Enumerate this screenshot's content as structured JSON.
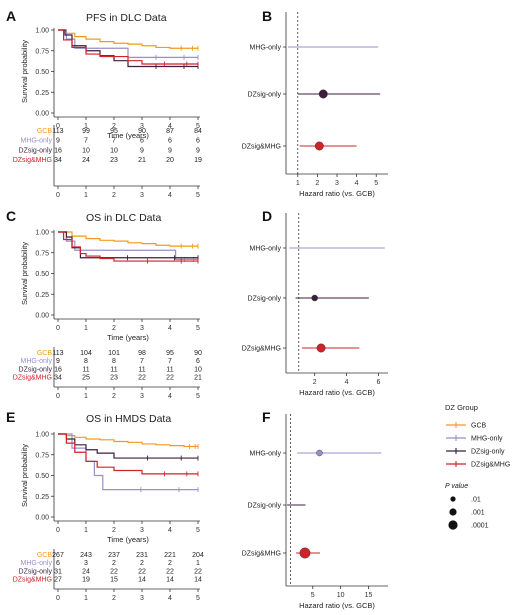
{
  "colors": {
    "GCB": "#F29A1F",
    "MHG-only": "#9A8FC9",
    "DZsig-only": "#3B1F3D",
    "DZsig&MHG": "#D02229"
  },
  "legend": {
    "title": "DZ Group",
    "groups": [
      "GCB",
      "MHG-only",
      "DZsig-only",
      "DZsig&MHG"
    ],
    "pvalue_title": "P value",
    "pvalue_labels": [
      ".01",
      ".001",
      ".0001"
    ]
  },
  "chart_data": [
    {
      "id": "A",
      "type": "line",
      "title": "PFS in DLC Data",
      "xlabel": "Time (years)",
      "ylabel": "Survival probability",
      "xlim": [
        0,
        5
      ],
      "ylim": [
        0,
        1
      ],
      "xticks": [
        0,
        1,
        2,
        3,
        4,
        5
      ],
      "yticks": [
        "0.00",
        "0.25",
        "0.50",
        "0.75",
        "1.00"
      ],
      "series": [
        {
          "name": "GCB",
          "steps": [
            [
              0,
              1
            ],
            [
              0.3,
              0.96
            ],
            [
              0.6,
              0.92
            ],
            [
              1,
              0.89
            ],
            [
              1.5,
              0.86
            ],
            [
              2,
              0.84
            ],
            [
              2.5,
              0.83
            ],
            [
              3,
              0.81
            ],
            [
              3.5,
              0.79
            ],
            [
              4,
              0.78
            ],
            [
              5,
              0.78
            ]
          ]
        },
        {
          "name": "MHG-only",
          "steps": [
            [
              0,
              1
            ],
            [
              0.3,
              0.89
            ],
            [
              0.6,
              0.78
            ],
            [
              2.5,
              0.67
            ],
            [
              5,
              0.67
            ]
          ]
        },
        {
          "name": "DZsig-only",
          "steps": [
            [
              0,
              1
            ],
            [
              0.25,
              0.94
            ],
            [
              0.5,
              0.81
            ],
            [
              1,
              0.75
            ],
            [
              1.5,
              0.69
            ],
            [
              2,
              0.63
            ],
            [
              2.5,
              0.56
            ],
            [
              5,
              0.56
            ]
          ]
        },
        {
          "name": "DZsig&MHG",
          "steps": [
            [
              0,
              1
            ],
            [
              0.2,
              0.88
            ],
            [
              0.5,
              0.79
            ],
            [
              1,
              0.71
            ],
            [
              1.5,
              0.68
            ],
            [
              2.5,
              0.63
            ],
            [
              3,
              0.59
            ],
            [
              5,
              0.59
            ]
          ]
        }
      ],
      "risk_table": {
        "times": [
          "0",
          "1",
          "2",
          "3",
          "4",
          "5"
        ],
        "rows": [
          {
            "name": "GCB",
            "values": [
              "113",
              "99",
              "95",
              "90",
              "87",
              "84"
            ]
          },
          {
            "name": "MHG-only",
            "values": [
              "9",
              "7",
              "7",
              "6",
              "6",
              "6"
            ]
          },
          {
            "name": "DZsig-only",
            "values": [
              "16",
              "10",
              "10",
              "9",
              "9",
              "9"
            ]
          },
          {
            "name": "DZsig&MHG",
            "values": [
              "34",
              "24",
              "23",
              "21",
              "20",
              "19"
            ]
          }
        ]
      }
    },
    {
      "id": "B",
      "type": "scatter",
      "xlabel": "Hazard ratio (vs. GCB)",
      "xlim": [
        0.4,
        5.6
      ],
      "xticks": [
        1,
        2,
        3,
        4,
        5
      ],
      "refline": 1,
      "rows": [
        {
          "name": "MHG-only",
          "hr": null,
          "lo": 0.5,
          "hi": 5.1
        },
        {
          "name": "DZsig-only",
          "hr": 2.3,
          "lo": 1.0,
          "hi": 5.2,
          "p": "0.001"
        },
        {
          "name": "DZsig&MHG",
          "hr": 2.1,
          "lo": 1.1,
          "hi": 4.0,
          "p": "0.001"
        }
      ]
    },
    {
      "id": "C",
      "type": "line",
      "title": "OS in DLC Data",
      "xlabel": "Time (years)",
      "ylabel": "Survival probability",
      "xlim": [
        0,
        5
      ],
      "ylim": [
        0,
        1
      ],
      "xticks": [
        0,
        1,
        2,
        3,
        4,
        5
      ],
      "yticks": [
        "0.00",
        "0.25",
        "0.50",
        "0.75",
        "1.00"
      ],
      "series": [
        {
          "name": "GCB",
          "steps": [
            [
              0,
              1
            ],
            [
              0.5,
              0.95
            ],
            [
              1,
              0.92
            ],
            [
              1.5,
              0.9
            ],
            [
              2,
              0.89
            ],
            [
              2.5,
              0.87
            ],
            [
              3,
              0.86
            ],
            [
              3.5,
              0.84
            ],
            [
              4,
              0.83
            ],
            [
              5,
              0.83
            ]
          ]
        },
        {
          "name": "MHG-only",
          "steps": [
            [
              0,
              1
            ],
            [
              0.3,
              0.89
            ],
            [
              0.6,
              0.78
            ],
            [
              4.2,
              0.67
            ],
            [
              5,
              0.67
            ]
          ]
        },
        {
          "name": "DZsig-only",
          "steps": [
            [
              0,
              1
            ],
            [
              0.3,
              0.94
            ],
            [
              0.5,
              0.81
            ],
            [
              0.8,
              0.69
            ],
            [
              5,
              0.69
            ]
          ]
        },
        {
          "name": "DZsig&MHG",
          "steps": [
            [
              0,
              1
            ],
            [
              0.2,
              0.91
            ],
            [
              0.5,
              0.82
            ],
            [
              0.8,
              0.74
            ],
            [
              1,
              0.71
            ],
            [
              1.5,
              0.68
            ],
            [
              2,
              0.65
            ],
            [
              5,
              0.65
            ]
          ]
        }
      ],
      "risk_table": {
        "times": [
          "0",
          "1",
          "2",
          "3",
          "4",
          "5"
        ],
        "rows": [
          {
            "name": "GCB",
            "values": [
              "113",
              "104",
              "101",
              "98",
              "95",
              "90"
            ]
          },
          {
            "name": "MHG-only",
            "values": [
              "9",
              "8",
              "8",
              "7",
              "7",
              "6"
            ]
          },
          {
            "name": "DZsig-only",
            "values": [
              "16",
              "11",
              "11",
              "11",
              "11",
              "10"
            ]
          },
          {
            "name": "DZsig&MHG",
            "values": [
              "34",
              "25",
              "23",
              "22",
              "22",
              "21"
            ]
          }
        ]
      }
    },
    {
      "id": "D",
      "type": "scatter",
      "xlabel": "Hazard ratio (vs. GCB)",
      "xlim": [
        0.2,
        6.6
      ],
      "xticks": [
        2,
        4,
        6
      ],
      "refline": 1,
      "rows": [
        {
          "name": "MHG-only",
          "hr": null,
          "lo": 0.4,
          "hi": 6.4
        },
        {
          "name": "DZsig-only",
          "hr": 2.0,
          "lo": 0.8,
          "hi": 5.4,
          "p": "0.01"
        },
        {
          "name": "DZsig&MHG",
          "hr": 2.4,
          "lo": 1.2,
          "hi": 4.8,
          "p": "0.001"
        }
      ]
    },
    {
      "id": "E",
      "type": "line",
      "title": "OS in HMDS Data",
      "xlabel": "Time (years)",
      "ylabel": "Survival probability",
      "xlim": [
        0,
        5
      ],
      "ylim": [
        0,
        1
      ],
      "xticks": [
        0,
        1,
        2,
        3,
        4,
        5
      ],
      "yticks": [
        "0.00",
        "0.25",
        "0.50",
        "0.75",
        "1.00"
      ],
      "series": [
        {
          "name": "GCB",
          "steps": [
            [
              0,
              1
            ],
            [
              0.3,
              0.98
            ],
            [
              0.6,
              0.96
            ],
            [
              1,
              0.94
            ],
            [
              1.5,
              0.93
            ],
            [
              2,
              0.91
            ],
            [
              2.5,
              0.9
            ],
            [
              3,
              0.88
            ],
            [
              3.5,
              0.87
            ],
            [
              4,
              0.86
            ],
            [
              4.5,
              0.85
            ],
            [
              5,
              0.85
            ]
          ]
        },
        {
          "name": "MHG-only",
          "steps": [
            [
              0,
              1
            ],
            [
              0.5,
              0.83
            ],
            [
              1,
              0.67
            ],
            [
              1.3,
              0.5
            ],
            [
              1.6,
              0.33
            ],
            [
              5,
              0.33
            ]
          ]
        },
        {
          "name": "DZsig-only",
          "steps": [
            [
              0,
              1
            ],
            [
              0.3,
              0.94
            ],
            [
              0.6,
              0.87
            ],
            [
              1,
              0.81
            ],
            [
              1.4,
              0.77
            ],
            [
              2,
              0.71
            ],
            [
              5,
              0.71
            ]
          ]
        },
        {
          "name": "DZsig&MHG",
          "steps": [
            [
              0,
              1
            ],
            [
              0.3,
              0.89
            ],
            [
              0.6,
              0.78
            ],
            [
              1,
              0.67
            ],
            [
              1.4,
              0.6
            ],
            [
              2,
              0.56
            ],
            [
              3,
              0.52
            ],
            [
              5,
              0.52
            ]
          ]
        }
      ],
      "risk_table": {
        "times": [
          "0",
          "1",
          "2",
          "3",
          "4",
          "5"
        ],
        "rows": [
          {
            "name": "GCB",
            "values": [
              "267",
              "243",
              "237",
              "231",
              "221",
              "204"
            ]
          },
          {
            "name": "MHG-only",
            "values": [
              "6",
              "3",
              "2",
              "2",
              "2",
              "1"
            ]
          },
          {
            "name": "DZsig-only",
            "values": [
              "31",
              "24",
              "22",
              "22",
              "22",
              "22"
            ]
          },
          {
            "name": "DZsig&MHG",
            "values": [
              "27",
              "19",
              "15",
              "14",
              "14",
              "14"
            ]
          }
        ]
      }
    },
    {
      "id": "F",
      "type": "scatter",
      "xlabel": "Hazard ratio (vs. GCB)",
      "xlim": [
        0.2,
        18.5
      ],
      "xticks": [
        5,
        10,
        15
      ],
      "refline": 1,
      "rows": [
        {
          "name": "MHG-only",
          "hr": 6.2,
          "lo": 2.2,
          "hi": 17.3,
          "p": "0.01"
        },
        {
          "name": "DZsig-only",
          "hr": null,
          "lo": 0.4,
          "hi": 3.7
        },
        {
          "name": "DZsig&MHG",
          "hr": 3.6,
          "lo": 2.0,
          "hi": 6.3,
          "p": "0.0001"
        }
      ]
    }
  ]
}
